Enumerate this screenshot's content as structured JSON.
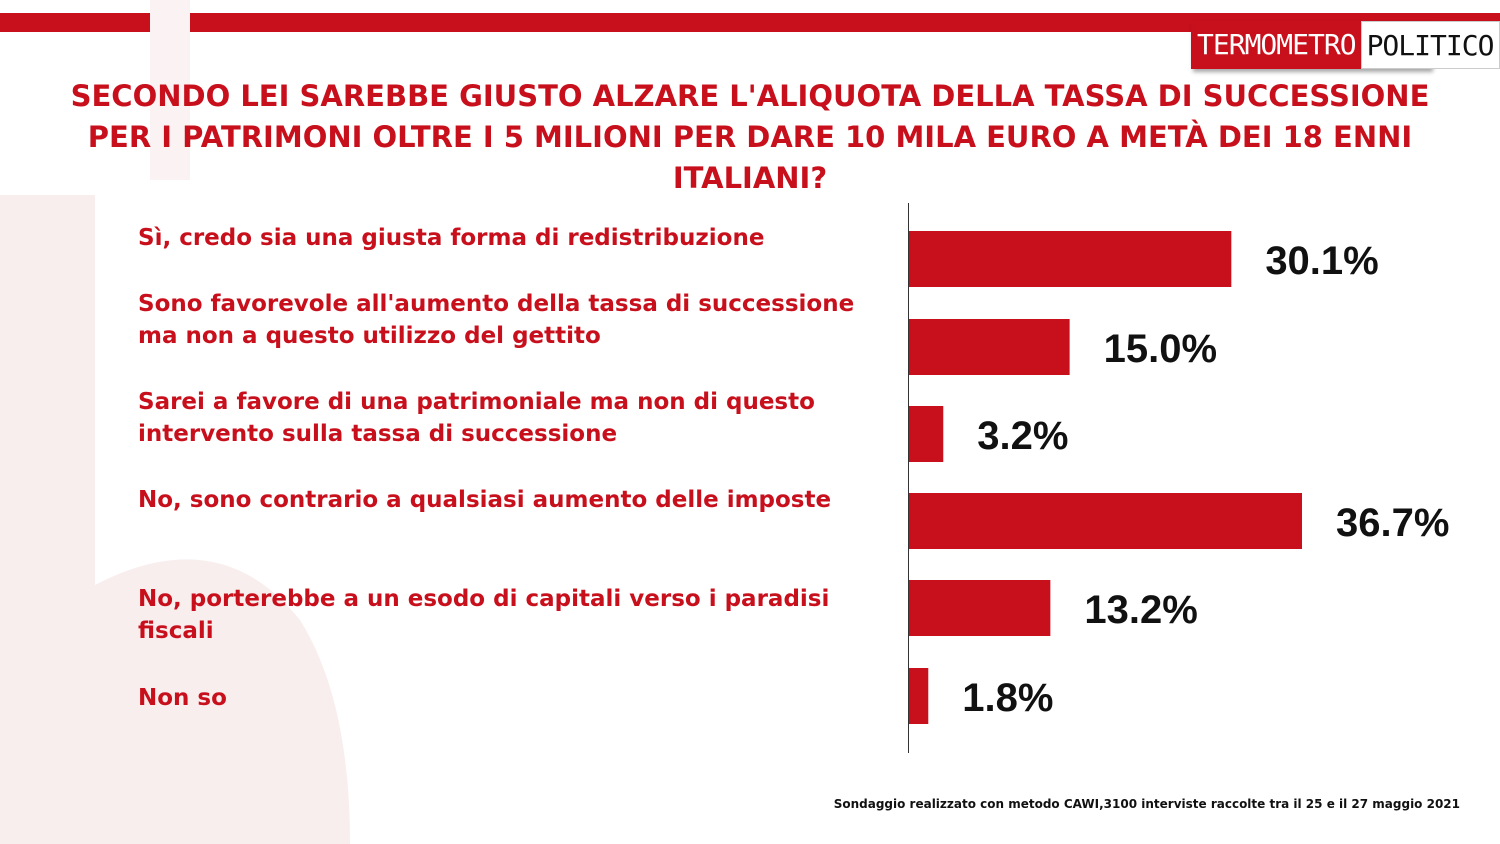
{
  "brand": {
    "logo_left": "TERMOMETRO",
    "logo_right": "POLITICO",
    "accent_color": "#c8101d"
  },
  "title": "SECONDO LEI SAREBBE GIUSTO ALZARE L'ALIQUOTA DELLA TASSA DI SUCCESSIONE PER I PATRIMONI OLTRE I 5 MILIONI PER DARE 10 MILA EURO A METÀ DEI 18 ENNI ITALIANI?",
  "chart_data": {
    "type": "bar",
    "orientation": "horizontal",
    "categories": [
      "Sì, credo sia una giusta forma di redistribuzione",
      "Sono favorevole all'aumento della tassa di successione ma non a questo utilizzo del gettito",
      "Sarei a favore di una patrimoniale ma non di questo intervento sulla tassa di successione",
      "No, sono contrario a qualsiasi aumento delle imposte",
      "No, porterebbe a un esodo di capitali verso i paradisi fiscali",
      "Non so"
    ],
    "values": [
      30.1,
      15.0,
      3.2,
      36.7,
      13.2,
      1.8
    ],
    "value_labels": [
      "30.1%",
      "15.0%",
      "3.2%",
      "36.7%",
      "13.2%",
      "1.8%"
    ],
    "bar_color": "#c8101d",
    "grid": false,
    "legend": "none"
  },
  "footnote": "Sondaggio realizzato con metodo CAWI,3100 interviste raccolte tra il 25  e il 27 maggio 2021"
}
